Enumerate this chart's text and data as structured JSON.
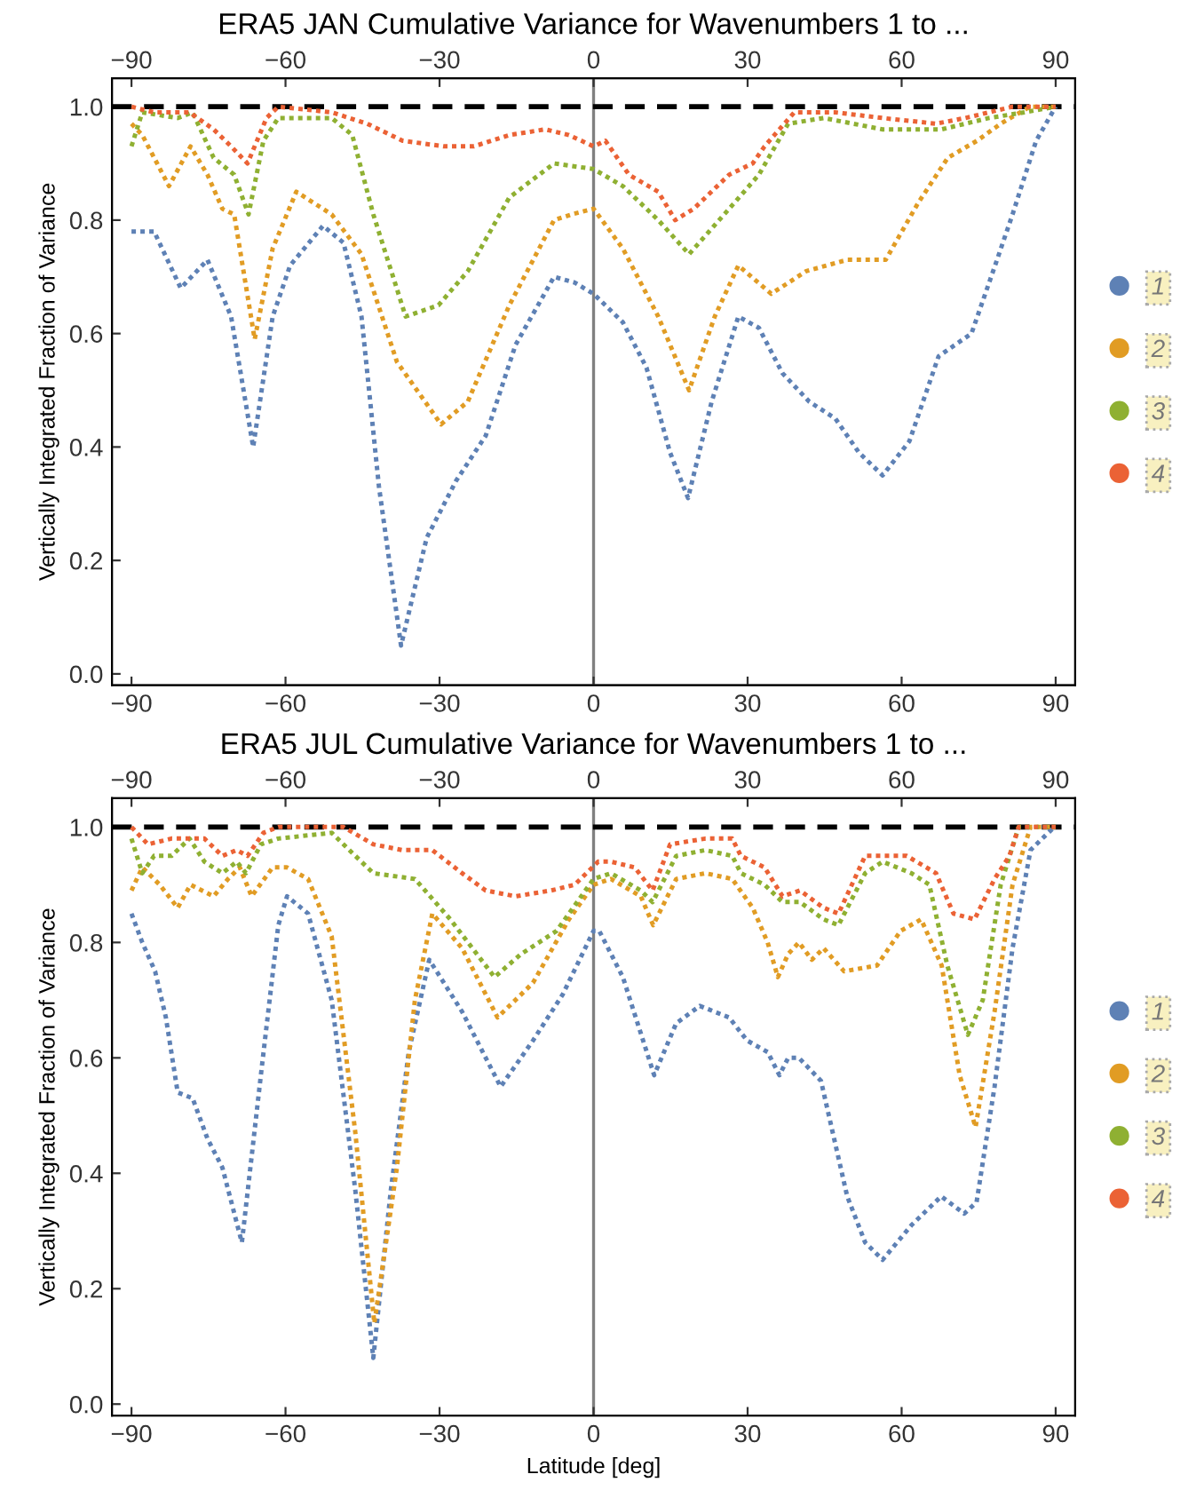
{
  "chart_data": [
    {
      "type": "line",
      "title": "ERA5 JAN Cumulative Variance for Wavenumbers 1 to ...",
      "ylabel": "Vertically Integrated Fraction of Variance",
      "xlim": [
        -93.8,
        93.8
      ],
      "xticks": [
        {
          "value": -90,
          "label": "−90"
        },
        {
          "value": -60,
          "label": "−60"
        },
        {
          "value": -30,
          "label": "−30"
        },
        0,
        30,
        60,
        90
      ],
      "x2lim": [
        -93.8,
        93.8
      ],
      "x2ticks": [
        {
          "value": -90,
          "label": "−90"
        },
        {
          "value": -60,
          "label": "−60"
        },
        {
          "value": -30,
          "label": "−30"
        },
        0,
        30,
        60,
        90
      ],
      "ylim": [
        -0.02,
        1.05
      ],
      "yticks": [
        {
          "value": 0,
          "label": "0.0"
        },
        {
          "value": 0.2,
          "label": "0.2"
        },
        {
          "value": 0.4,
          "label": "0.4"
        },
        {
          "value": 0.6,
          "label": "0.6"
        },
        {
          "value": 0.8,
          "label": "0.8"
        },
        {
          "value": 1.0,
          "label": "1.0"
        }
      ],
      "line_style": "dotted",
      "legend": "right",
      "grid": false,
      "ref_lines": [
        {
          "axis": "y",
          "value": 1.0,
          "color": "#000000",
          "line_style": "dashed"
        },
        {
          "axis": "x",
          "value": 0,
          "color": "#808080",
          "line_style": "solid"
        }
      ],
      "series": [
        {
          "name": "1",
          "color": "#5e81b5",
          "x": [
            -90,
            -85.6,
            -80.4,
            -75.2,
            -70.6,
            -66.3,
            -62.5,
            -59.1,
            -52.7,
            -48.7,
            -45.2,
            -41.8,
            -37.5,
            -32.5,
            -26.8,
            -21,
            -15.2,
            -7.7,
            -3.7,
            0,
            5.7,
            10.3,
            14.9,
            18.4,
            23,
            28.2,
            32.2,
            36.8,
            42,
            47.1,
            51.7,
            56.3,
            61.5,
            67.2,
            73.6,
            78.2,
            81.6,
            86.2,
            90
          ],
          "values": [
            0.78,
            0.78,
            0.68,
            0.73,
            0.63,
            0.4,
            0.63,
            0.72,
            0.79,
            0.76,
            0.63,
            0.33,
            0.05,
            0.24,
            0.34,
            0.42,
            0.58,
            0.7,
            0.69,
            0.67,
            0.62,
            0.54,
            0.39,
            0.31,
            0.48,
            0.63,
            0.61,
            0.53,
            0.48,
            0.45,
            0.39,
            0.35,
            0.41,
            0.56,
            0.6,
            0.72,
            0.81,
            0.94,
            1.0
          ]
        },
        {
          "name": "2",
          "color": "#e19c24",
          "x": [
            -90,
            -87.9,
            -82.7,
            -78.5,
            -75.2,
            -72.3,
            -70,
            -66,
            -62.5,
            -57.9,
            -51,
            -45.2,
            -38.3,
            -29.7,
            -24.5,
            -16.4,
            -7.7,
            -4.3,
            0,
            5.7,
            12.6,
            18.6,
            23.6,
            28.2,
            34.6,
            41.4,
            49.4,
            56.9,
            63.2,
            69,
            74.7,
            79.3,
            85,
            90
          ],
          "values": [
            0.97,
            0.95,
            0.86,
            0.93,
            0.88,
            0.82,
            0.81,
            0.59,
            0.75,
            0.85,
            0.81,
            0.74,
            0.55,
            0.44,
            0.48,
            0.65,
            0.8,
            0.81,
            0.82,
            0.75,
            0.63,
            0.5,
            0.63,
            0.72,
            0.67,
            0.71,
            0.73,
            0.73,
            0.83,
            0.91,
            0.94,
            0.97,
            1.0,
            1.0
          ]
        },
        {
          "name": "3",
          "color": "#8fb032",
          "x": [
            -90,
            -87.9,
            -81,
            -78.1,
            -74,
            -70,
            -67.2,
            -64.3,
            -61.4,
            -51,
            -47,
            -42.9,
            -36.6,
            -30.2,
            -24.5,
            -16.4,
            -7.7,
            0,
            5.7,
            12.6,
            18.6,
            26.4,
            32.2,
            37.9,
            44.8,
            56.3,
            67.8,
            77,
            83.9,
            90
          ],
          "values": [
            0.93,
            0.99,
            0.98,
            0.99,
            0.91,
            0.88,
            0.81,
            0.94,
            0.98,
            0.98,
            0.95,
            0.81,
            0.63,
            0.65,
            0.71,
            0.84,
            0.9,
            0.89,
            0.86,
            0.8,
            0.74,
            0.82,
            0.88,
            0.97,
            0.98,
            0.96,
            0.96,
            0.98,
            0.99,
            1.0
          ]
        },
        {
          "name": "4",
          "color": "#eb6235",
          "x": [
            -90,
            -85.6,
            -78.7,
            -74,
            -70.6,
            -67.4,
            -63.7,
            -61.4,
            -51,
            -44.1,
            -37.2,
            -29.1,
            -23.3,
            -16.4,
            -9.4,
            -4.8,
            0,
            2.3,
            6.9,
            12.6,
            15.9,
            19.5,
            26.4,
            31,
            33.3,
            39.1,
            47.1,
            56.3,
            66.7,
            72.4,
            81.6,
            90
          ],
          "values": [
            1.0,
            0.99,
            0.99,
            0.96,
            0.93,
            0.9,
            0.98,
            1.0,
            0.99,
            0.97,
            0.94,
            0.93,
            0.93,
            0.95,
            0.96,
            0.95,
            0.93,
            0.94,
            0.88,
            0.85,
            0.8,
            0.82,
            0.88,
            0.9,
            0.93,
            0.99,
            0.99,
            0.98,
            0.97,
            0.98,
            1.0,
            1.0
          ]
        }
      ]
    },
    {
      "type": "line",
      "title": "ERA5 JUL Cumulative Variance for Wavenumbers 1 to ...",
      "xlabel": "Latitude [deg]",
      "ylabel": "Vertically Integrated Fraction of Variance",
      "xlim": [
        -93.8,
        93.8
      ],
      "xticks": [
        {
          "value": -90,
          "label": "−90"
        },
        {
          "value": -60,
          "label": "−60"
        },
        {
          "value": -30,
          "label": "−30"
        },
        0,
        30,
        60,
        90
      ],
      "x2lim": [
        -93.8,
        93.8
      ],
      "x2ticks": [
        {
          "value": -90,
          "label": "−90"
        },
        {
          "value": -60,
          "label": "−60"
        },
        {
          "value": -30,
          "label": "−30"
        },
        0,
        30,
        60,
        90
      ],
      "ylim": [
        -0.02,
        1.05
      ],
      "yticks": [
        {
          "value": 0,
          "label": "0.0"
        },
        {
          "value": 0.2,
          "label": "0.2"
        },
        {
          "value": 0.4,
          "label": "0.4"
        },
        {
          "value": 0.6,
          "label": "0.6"
        },
        {
          "value": 0.8,
          "label": "0.8"
        },
        {
          "value": 1.0,
          "label": "1.0"
        }
      ],
      "line_style": "dotted",
      "legend": "right",
      "grid": false,
      "ref_lines": [
        {
          "axis": "y",
          "value": 1.0,
          "color": "#000000",
          "line_style": "dashed"
        },
        {
          "axis": "x",
          "value": 0,
          "color": "#808080",
          "line_style": "solid"
        }
      ],
      "series": [
        {
          "name": "1",
          "color": "#5e81b5",
          "x": [
            -90,
            -87.9,
            -85.4,
            -83.3,
            -81,
            -78.1,
            -75.2,
            -72.3,
            -68.5,
            -64.8,
            -61.4,
            -59.7,
            -55.6,
            -51,
            -46.4,
            -42.9,
            -39.5,
            -36,
            -32,
            -25.6,
            -21,
            -18.1,
            -11.8,
            -6,
            0,
            1.1,
            5.7,
            11.8,
            16.1,
            20.7,
            26.4,
            29.9,
            33.9,
            36.2,
            37.9,
            40,
            44.3,
            49.4,
            52.9,
            56.3,
            61.9,
            67.7,
            72.2,
            74.6,
            78.1,
            81.6,
            85.1,
            89.7
          ],
          "values": [
            0.85,
            0.8,
            0.75,
            0.67,
            0.54,
            0.53,
            0.46,
            0.41,
            0.28,
            0.57,
            0.83,
            0.88,
            0.85,
            0.7,
            0.37,
            0.08,
            0.37,
            0.61,
            0.77,
            0.68,
            0.6,
            0.55,
            0.63,
            0.71,
            0.82,
            0.82,
            0.74,
            0.57,
            0.66,
            0.69,
            0.67,
            0.63,
            0.61,
            0.57,
            0.6,
            0.6,
            0.56,
            0.36,
            0.28,
            0.25,
            0.31,
            0.36,
            0.33,
            0.35,
            0.55,
            0.79,
            0.96,
            1.0
          ]
        },
        {
          "name": "2",
          "color": "#e19c24",
          "x": [
            -90,
            -87.9,
            -84.5,
            -81,
            -78.5,
            -74,
            -71.2,
            -68.9,
            -66.6,
            -62.5,
            -59.7,
            -55.6,
            -51,
            -46.4,
            -42.7,
            -38.3,
            -34.8,
            -31.4,
            -25.6,
            -18.7,
            -11.8,
            -4.8,
            0,
            3.4,
            9.2,
            11.6,
            16.1,
            21.8,
            27,
            31,
            33.9,
            35.9,
            37.9,
            40,
            42.5,
            44.8,
            48.8,
            55.2,
            59.8,
            63.8,
            67.8,
            71.3,
            74.4,
            78.1,
            81.6,
            85.1,
            90
          ],
          "values": [
            0.89,
            0.93,
            0.9,
            0.86,
            0.9,
            0.88,
            0.91,
            0.93,
            0.88,
            0.93,
            0.93,
            0.91,
            0.81,
            0.47,
            0.14,
            0.41,
            0.7,
            0.85,
            0.79,
            0.67,
            0.73,
            0.84,
            0.9,
            0.91,
            0.88,
            0.83,
            0.91,
            0.92,
            0.91,
            0.86,
            0.8,
            0.74,
            0.78,
            0.8,
            0.77,
            0.79,
            0.75,
            0.76,
            0.82,
            0.84,
            0.76,
            0.57,
            0.48,
            0.68,
            0.9,
            1.0,
            1.0
          ]
        },
        {
          "name": "3",
          "color": "#8fb032",
          "x": [
            -90,
            -87.9,
            -85.6,
            -82.2,
            -78.7,
            -75.8,
            -72.3,
            -69.5,
            -67.7,
            -64.8,
            -61.4,
            -51,
            -46.4,
            -42.9,
            -34.8,
            -27.9,
            -19.3,
            -14.1,
            -7.2,
            0,
            3.4,
            9.2,
            11.5,
            16.1,
            21.8,
            27,
            28.7,
            33.3,
            36.8,
            40.2,
            44.8,
            47.7,
            52.9,
            56.3,
            61.9,
            65.4,
            68.9,
            72.9,
            75.8,
            79.3,
            82.8,
            90
          ],
          "values": [
            0.98,
            0.92,
            0.95,
            0.95,
            0.98,
            0.94,
            0.92,
            0.94,
            0.92,
            0.97,
            0.98,
            0.99,
            0.95,
            0.92,
            0.91,
            0.84,
            0.74,
            0.78,
            0.82,
            0.91,
            0.92,
            0.89,
            0.87,
            0.95,
            0.96,
            0.95,
            0.92,
            0.9,
            0.87,
            0.87,
            0.84,
            0.83,
            0.92,
            0.94,
            0.92,
            0.9,
            0.76,
            0.64,
            0.7,
            0.9,
            1.0,
            1.0
          ]
        },
        {
          "name": "4",
          "color": "#eb6235",
          "x": [
            -90,
            -86.8,
            -82.2,
            -78.7,
            -75.8,
            -72.3,
            -69.5,
            -67.4,
            -64.3,
            -61.4,
            -48.7,
            -42.9,
            -37.2,
            -31.4,
            -25.6,
            -21,
            -15.2,
            -8.3,
            -3.7,
            0.9,
            3.4,
            8,
            11.5,
            14.9,
            21.8,
            27,
            28.7,
            33.3,
            36.8,
            40.2,
            44.8,
            47.7,
            52.9,
            61,
            66.7,
            70.1,
            74.2,
            78.1,
            81,
            82.8,
            90
          ],
          "values": [
            1.0,
            0.97,
            0.98,
            0.98,
            0.98,
            0.95,
            0.96,
            0.95,
            0.99,
            1.0,
            1.0,
            0.97,
            0.96,
            0.96,
            0.92,
            0.89,
            0.88,
            0.89,
            0.9,
            0.94,
            0.94,
            0.93,
            0.89,
            0.97,
            0.98,
            0.98,
            0.95,
            0.93,
            0.88,
            0.89,
            0.86,
            0.85,
            0.95,
            0.95,
            0.92,
            0.85,
            0.84,
            0.91,
            0.95,
            1.0,
            1.0
          ]
        }
      ]
    }
  ]
}
